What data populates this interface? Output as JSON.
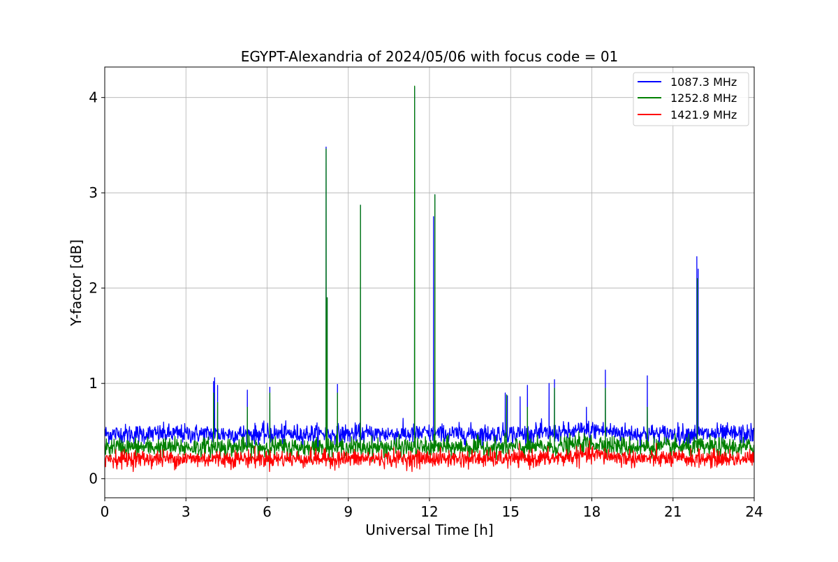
{
  "chart_data": {
    "type": "line",
    "title": "EGYPT-Alexandria of 2024/05/06 with focus code = 01",
    "xlabel": "Universal Time [h]",
    "ylabel": "Y-factor [dB]",
    "xlim": [
      0,
      24
    ],
    "ylim": [
      -0.2,
      4.32
    ],
    "x_ticks": [
      0,
      3,
      6,
      9,
      12,
      15,
      18,
      21,
      24
    ],
    "y_ticks": [
      0,
      1,
      2,
      3,
      4
    ],
    "grid": true,
    "legend_position": "top-right",
    "series": [
      {
        "name": "1087.3 MHz",
        "color": "#0000ff",
        "baseline": 0.47,
        "noise": 0.05,
        "spikes": [
          {
            "x": 4.02,
            "y": 1.02
          },
          {
            "x": 4.06,
            "y": 1.06
          },
          {
            "x": 4.17,
            "y": 0.98
          },
          {
            "x": 5.27,
            "y": 0.93
          },
          {
            "x": 6.1,
            "y": 0.96
          },
          {
            "x": 8.18,
            "y": 3.48
          },
          {
            "x": 8.22,
            "y": 1.9
          },
          {
            "x": 8.6,
            "y": 0.99
          },
          {
            "x": 9.45,
            "y": 2.87
          },
          {
            "x": 11.45,
            "y": 4.11
          },
          {
            "x": 12.15,
            "y": 2.75
          },
          {
            "x": 12.2,
            "y": 2.98
          },
          {
            "x": 14.8,
            "y": 0.9
          },
          {
            "x": 14.88,
            "y": 0.87
          },
          {
            "x": 15.35,
            "y": 0.86
          },
          {
            "x": 15.62,
            "y": 0.98
          },
          {
            "x": 16.42,
            "y": 1.0
          },
          {
            "x": 16.62,
            "y": 1.04
          },
          {
            "x": 17.8,
            "y": 0.75
          },
          {
            "x": 18.5,
            "y": 1.14
          },
          {
            "x": 20.05,
            "y": 1.08
          },
          {
            "x": 21.88,
            "y": 2.33
          },
          {
            "x": 21.93,
            "y": 2.2
          }
        ]
      },
      {
        "name": "1252.8 MHz",
        "color": "#008000",
        "baseline": 0.33,
        "noise": 0.05,
        "spikes": [
          {
            "x": 4.02,
            "y": 0.9
          },
          {
            "x": 4.17,
            "y": 0.8
          },
          {
            "x": 5.27,
            "y": 0.75
          },
          {
            "x": 6.1,
            "y": 0.9
          },
          {
            "x": 8.18,
            "y": 3.46
          },
          {
            "x": 8.22,
            "y": 1.9
          },
          {
            "x": 8.6,
            "y": 0.9
          },
          {
            "x": 9.45,
            "y": 2.87
          },
          {
            "x": 11.45,
            "y": 4.12
          },
          {
            "x": 12.2,
            "y": 2.98
          },
          {
            "x": 14.85,
            "y": 0.88
          },
          {
            "x": 15.62,
            "y": 0.75
          },
          {
            "x": 16.62,
            "y": 0.95
          },
          {
            "x": 18.5,
            "y": 0.95
          },
          {
            "x": 20.05,
            "y": 0.75
          },
          {
            "x": 21.9,
            "y": 2.1
          }
        ]
      },
      {
        "name": "1421.9 MHz",
        "color": "#ff0000",
        "baseline": 0.21,
        "noise": 0.045,
        "spikes": []
      }
    ]
  }
}
